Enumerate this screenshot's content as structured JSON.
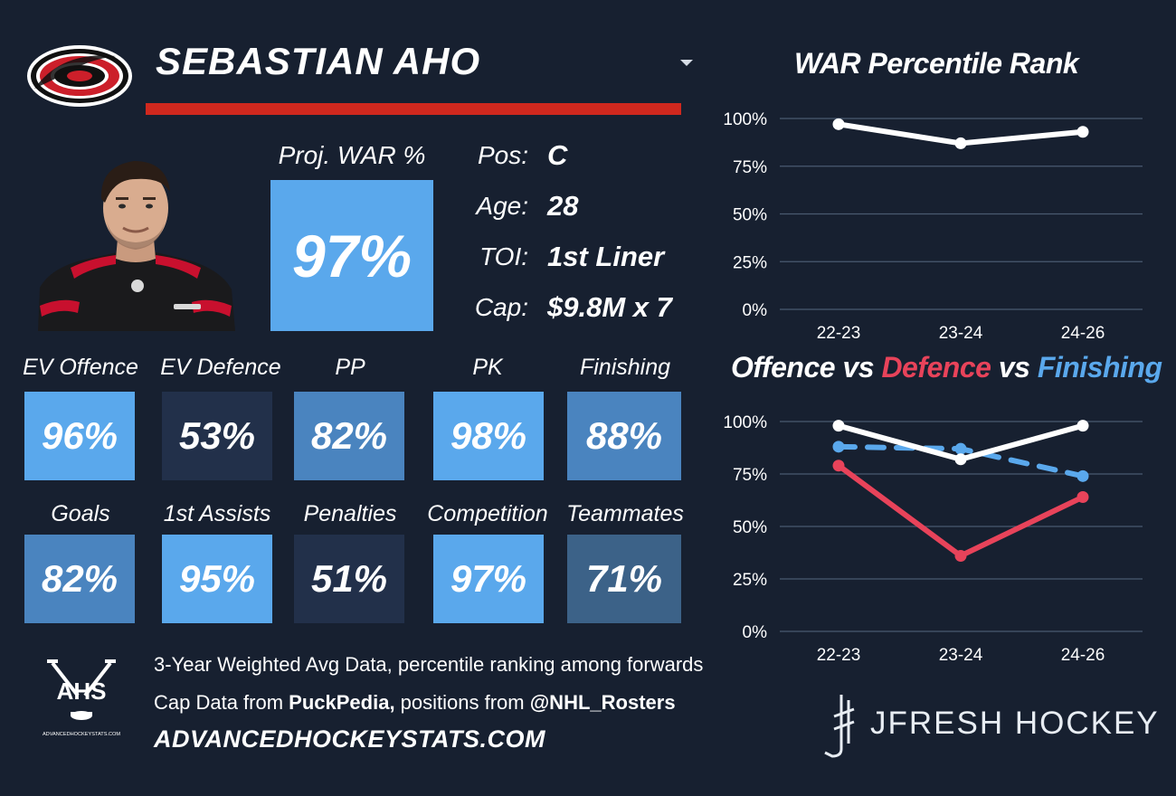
{
  "header": {
    "player_name": "SEBASTIAN AHO"
  },
  "colors": {
    "background": "#172030",
    "accent_red": "#d0281e",
    "defence_red": "#e8435a",
    "finishing_blue": "#5aa8ec",
    "tile_high": "#5aa8ec",
    "tile_mid": "#4a84bf",
    "tile_midlow": "#3c6288",
    "tile_low": "#22304a"
  },
  "projected": {
    "label": "Proj. WAR %",
    "value": "97%"
  },
  "info": {
    "pos_label": "Pos:",
    "pos_value": "C",
    "age_label": "Age:",
    "age_value": "28",
    "toi_label": "TOI:",
    "toi_value": "1st Liner",
    "cap_label": "Cap:",
    "cap_value": "$9.8M x 7"
  },
  "metrics": [
    {
      "label": "EV Offence",
      "value": "96%"
    },
    {
      "label": "EV Defence",
      "value": "53%"
    },
    {
      "label": "PP",
      "value": "82%"
    },
    {
      "label": "PK",
      "value": "98%"
    },
    {
      "label": "Finishing",
      "value": "88%"
    },
    {
      "label": "Goals",
      "value": "82%"
    },
    {
      "label": "1st Assists",
      "value": "95%"
    },
    {
      "label": "Penalties",
      "value": "51%"
    },
    {
      "label": "Competition",
      "value": "97%"
    },
    {
      "label": "Teammates",
      "value": "71%"
    }
  ],
  "footer": {
    "ahs_logo_text": "AHS",
    "ahs_logo_small": "ADVANCEDHOCKEYSTATS.COM",
    "line1": "3-Year Weighted Avg Data, percentile ranking among forwards",
    "line2_prefix": "Cap Data from ",
    "line2_source": "PuckPedia,",
    "line2_mid": " positions from ",
    "line2_handle": "@NHL_Rosters",
    "site": "ADVANCEDHOCKEYSTATS.COM",
    "brand": "JFRESH HOCKEY"
  },
  "chart_data": [
    {
      "type": "line",
      "title": "WAR Percentile Rank",
      "categories": [
        "22-23",
        "23-24",
        "24-26"
      ],
      "yticks": [
        "100%",
        "75%",
        "50%",
        "25%",
        "0%"
      ],
      "ylim": [
        0,
        100
      ],
      "grid": true,
      "series": [
        {
          "values": [
            97,
            87,
            93
          ],
          "color": "#ffffff",
          "dashed": false
        }
      ]
    },
    {
      "type": "line",
      "title_parts": [
        "Offence",
        " vs ",
        "Defence",
        " vs ",
        "Finishing"
      ],
      "categories": [
        "22-23",
        "23-24",
        "24-26"
      ],
      "yticks": [
        "100%",
        "75%",
        "50%",
        "25%",
        "0%"
      ],
      "ylim": [
        0,
        100
      ],
      "grid": true,
      "series": [
        {
          "values": [
            88,
            87,
            74
          ],
          "color": "#5aa8ec",
          "dashed": true
        },
        {
          "values": [
            79,
            36,
            64
          ],
          "color": "#e8435a",
          "dashed": false
        },
        {
          "values": [
            98,
            82,
            98
          ],
          "color": "#ffffff",
          "dashed": false
        }
      ]
    }
  ]
}
